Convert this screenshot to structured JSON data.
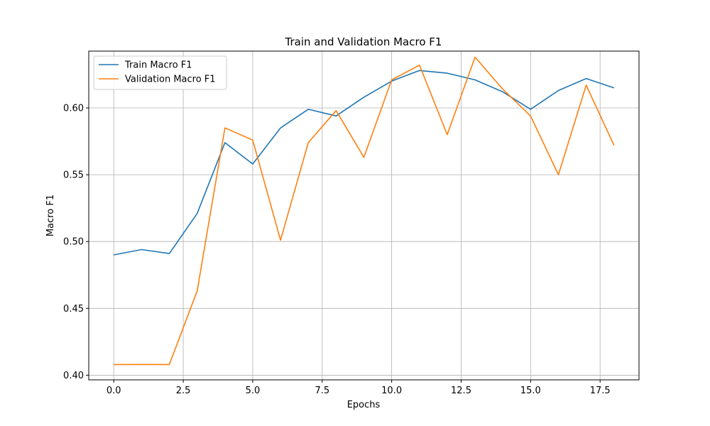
{
  "chart_data": {
    "type": "line",
    "title": "Train and Validation Macro F1",
    "xlabel": "Epochs",
    "ylabel": "Macro F1",
    "xlim": [
      -0.9,
      18.9
    ],
    "ylim": [
      0.3965,
      0.6425
    ],
    "x_ticks": [
      0.0,
      2.5,
      5.0,
      7.5,
      10.0,
      12.5,
      15.0,
      17.5
    ],
    "y_ticks": [
      0.4,
      0.45,
      0.5,
      0.55,
      0.6
    ],
    "grid": true,
    "legend_position": "upper-left",
    "x": [
      0,
      1,
      2,
      3,
      4,
      5,
      6,
      7,
      8,
      9,
      10,
      11,
      12,
      13,
      14,
      15,
      16,
      17,
      18
    ],
    "series": [
      {
        "name": "Train Macro F1",
        "color": "#1f77b4",
        "values": [
          0.49,
          0.494,
          0.491,
          0.521,
          0.574,
          0.558,
          0.585,
          0.599,
          0.594,
          0.608,
          0.62,
          0.628,
          0.626,
          0.621,
          0.612,
          0.599,
          0.613,
          0.622,
          0.615
        ]
      },
      {
        "name": "Validation Macro F1",
        "color": "#ff7f0e",
        "values": [
          0.408,
          0.408,
          0.408,
          0.463,
          0.585,
          0.576,
          0.501,
          0.574,
          0.598,
          0.563,
          0.621,
          0.632,
          0.58,
          0.638,
          0.614,
          0.594,
          0.55,
          0.617,
          0.572
        ]
      }
    ]
  }
}
